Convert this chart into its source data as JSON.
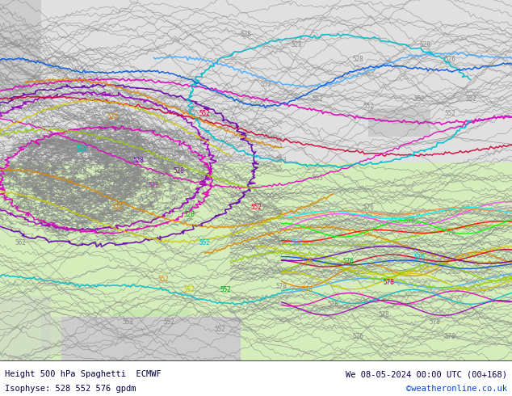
{
  "title_left": "Height 500 hPa Spaghetti  ECMWF",
  "title_right": "We 08-05-2024 00:00 UTC (00+168)",
  "subtitle_left": "Isophyse: 528 552 576 gpdm",
  "subtitle_right": "©weatheronline.co.uk",
  "land_color": "#d4edba",
  "sea_color": "#e0e0e0",
  "bottom_bar_color": "#ffffff",
  "fig_width": 6.34,
  "fig_height": 4.9,
  "dpi": 100,
  "gray_color": "#888888",
  "colored_lines": [
    "#aa00aa",
    "#ff00ff",
    "#00aaff",
    "#00cccc",
    "#ff8800",
    "#cccc00",
    "#cc0044",
    "#0000cc",
    "#00aa00"
  ]
}
